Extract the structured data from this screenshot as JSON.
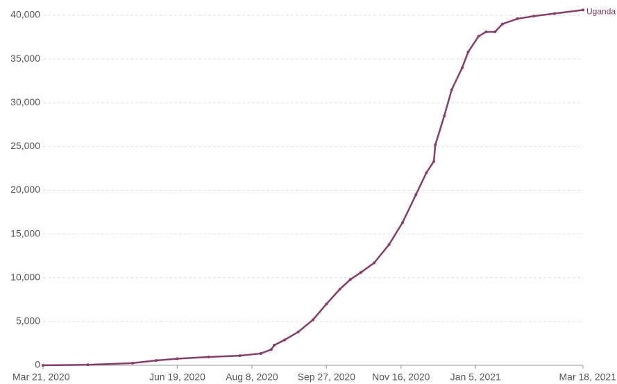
{
  "chart_data": {
    "type": "line",
    "x": [
      "2020-03-21",
      "2020-04-20",
      "2020-05-20",
      "2020-06-05",
      "2020-06-19",
      "2020-07-10",
      "2020-07-31",
      "2020-08-14",
      "2020-08-21",
      "2020-08-23",
      "2020-08-30",
      "2020-09-08",
      "2020-09-18",
      "2020-09-27",
      "2020-10-06",
      "2020-10-13",
      "2020-10-20",
      "2020-10-29",
      "2020-11-08",
      "2020-11-17",
      "2020-11-26",
      "2020-12-03",
      "2020-12-08",
      "2020-12-09",
      "2020-12-15",
      "2020-12-20",
      "2020-12-27",
      "2020-12-31",
      "2021-01-07",
      "2021-01-12",
      "2021-01-18",
      "2021-01-23",
      "2021-02-02",
      "2021-02-13",
      "2021-02-27",
      "2021-03-18"
    ],
    "series": [
      {
        "name": "Uganda",
        "color": "#883d68",
        "values": [
          0,
          60,
          250,
          550,
          750,
          950,
          1100,
          1350,
          1800,
          2300,
          2900,
          3800,
          5200,
          7000,
          8700,
          9800,
          10600,
          11700,
          13800,
          16300,
          19500,
          22000,
          23300,
          25200,
          28500,
          31500,
          34000,
          35800,
          37600,
          38100,
          38100,
          39000,
          39600,
          39900,
          40200,
          40600
        ]
      }
    ],
    "xlim": [
      "2020-03-21",
      "2021-03-18"
    ],
    "xticks": [
      {
        "value": "2020-03-21",
        "label": "Mar 21, 2020"
      },
      {
        "value": "2020-06-19",
        "label": "Jun 19, 2020"
      },
      {
        "value": "2020-08-08",
        "label": "Aug 8, 2020"
      },
      {
        "value": "2020-09-27",
        "label": "Sep 27, 2020"
      },
      {
        "value": "2020-11-16",
        "label": "Nov 16, 2020"
      },
      {
        "value": "2021-01-05",
        "label": "Jan 5, 2021"
      },
      {
        "value": "2021-03-18",
        "label": "Mar 18, 2021"
      }
    ],
    "ylim": [
      0,
      40000
    ],
    "yticks": [
      0,
      {
        "value": 5000,
        "label": "5,000"
      },
      {
        "value": 10000,
        "label": "10,000"
      },
      {
        "value": 15000,
        "label": "15,000"
      },
      {
        "value": 20000,
        "label": "20,000"
      },
      {
        "value": 25000,
        "label": "25,000"
      },
      {
        "value": 30000,
        "label": "30,000"
      },
      {
        "value": 35000,
        "label": "35,000"
      },
      {
        "value": 40000,
        "label": "40,000"
      }
    ],
    "grid": true
  }
}
